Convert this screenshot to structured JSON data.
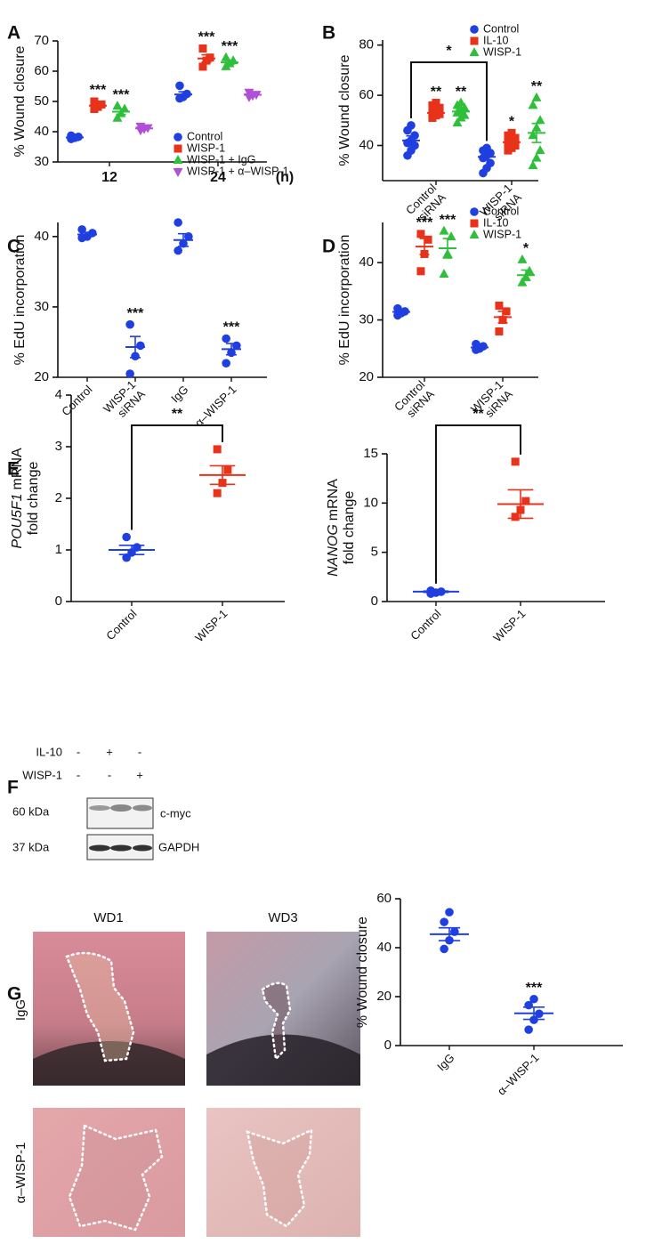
{
  "chart_data": [
    {
      "panel": "A",
      "type": "dotplot",
      "ylabel": [
        "% Wound closure"
      ],
      "xlabel": "(h)",
      "categories": [
        [
          "12"
        ],
        [
          "24"
        ]
      ],
      "ylim": [
        30,
        70
      ],
      "yticks": [
        30,
        40,
        50,
        60,
        70
      ],
      "legend": "lower right",
      "series": [
        {
          "name": "Control",
          "color": "#1f3fe0",
          "marker": "circle",
          "points": [
            [
              37.6,
              38.0,
              38.3,
              38.7
            ],
            [
              51.0,
              51.5,
              52.5,
              55.2
            ]
          ],
          "mean": [
            38.1,
            52.3
          ],
          "sem": [
            0.3,
            0.9
          ],
          "stars": [
            null,
            null
          ]
        },
        {
          "name": "WISP-1",
          "color": "#e8321a",
          "marker": "square",
          "points": [
            [
              47.5,
              48.2,
              49.0,
              50.0
            ],
            [
              61.5,
              63.5,
              64.5,
              67.5
            ]
          ],
          "mean": [
            48.6,
            64.2
          ],
          "sem": [
            0.6,
            1.2
          ],
          "stars": [
            "***",
            "***"
          ]
        },
        {
          "name": "WISP-1 + IgG",
          "color": "#2fbf3a",
          "marker": "triangle-up",
          "points": [
            [
              44.5,
              46.0,
              47.5,
              48.5
            ],
            [
              61.5,
              62.5,
              63.5,
              64.5
            ]
          ],
          "mean": [
            46.6,
            62.9
          ],
          "sem": [
            0.9,
            0.6
          ],
          "stars": [
            "***",
            "***"
          ]
        },
        {
          "name": "WISP-1 + α–WISP-1",
          "color": "#b04fd8",
          "marker": "triangle-down",
          "points": [
            [
              40.5,
              41.0,
              41.3,
              41.8
            ],
            [
              51.5,
              52.0,
              52.3,
              53.0
            ]
          ],
          "mean": [
            41.1,
            52.2
          ],
          "sem": [
            0.3,
            0.4
          ],
          "stars": [
            null,
            null
          ]
        }
      ]
    },
    {
      "panel": "B",
      "type": "dotplot",
      "ylabel": [
        "% Wound closure"
      ],
      "categories": [
        [
          "Control",
          "siRNA"
        ],
        [
          "WISP-1",
          "siRNA"
        ]
      ],
      "ylim": [
        26,
        82
      ],
      "yticks": [
        40,
        60,
        80
      ],
      "legend": "upper right",
      "bracket": "*",
      "series": [
        {
          "name": "Control",
          "color": "#1f3fe0",
          "marker": "circle",
          "points": [
            [
              36,
              38,
              40,
              41,
              42,
              44,
              46,
              48
            ],
            [
              29,
              31,
              33,
              35,
              36,
              37,
              38,
              39
            ]
          ],
          "mean": [
            42,
            35.5
          ],
          "sem": [
            1.8,
            1.3
          ],
          "stars": [
            null,
            null
          ]
        },
        {
          "name": "IL-10",
          "color": "#e8321a",
          "marker": "square",
          "points": [
            [
              51,
              52,
              52.5,
              53,
              54,
              55,
              56,
              57
            ],
            [
              38,
              39,
              40,
              41,
              42,
              43,
              44,
              45
            ]
          ],
          "mean": [
            53,
            41.3
          ],
          "sem": [
            0.7,
            0.9
          ],
          "stars": [
            "**",
            "*"
          ]
        },
        {
          "name": "WISP-1",
          "color": "#2fbf3a",
          "marker": "triangle-up",
          "points": [
            [
              49,
              51,
              52,
              53,
              54,
              55,
              56,
              57
            ],
            [
              32,
              35,
              38,
              44,
              47,
              50,
              56,
              59
            ]
          ],
          "mean": [
            53.5,
            45
          ],
          "sem": [
            1,
            3.8
          ],
          "stars": [
            "**",
            "**"
          ]
        }
      ]
    },
    {
      "panel": "C",
      "type": "dotplot",
      "ylabel": [
        "% EdU incorporation"
      ],
      "categories": [
        [
          "Control"
        ],
        [
          "WISP-1",
          "siRNA"
        ],
        [
          "IgG"
        ],
        [
          "α–WISP-1"
        ]
      ],
      "ylim": [
        20,
        42
      ],
      "yticks": [
        20,
        30,
        40
      ],
      "series": [
        {
          "color": "#1f3fe0",
          "marker": "circle",
          "points": [
            [
              39.8,
              40.0,
              40.5,
              41.0
            ],
            [
              20.5,
              23.0,
              24.5,
              27.5
            ],
            [
              38.0,
              39.0,
              40.0,
              42.0
            ],
            [
              22.0,
              23.5,
              24.5,
              25.5
            ]
          ],
          "mean": [
            40.3,
            24.3,
            39.5,
            24.0
          ],
          "sem": [
            0.3,
            1.5,
            0.9,
            0.8
          ],
          "stars": [
            null,
            "***",
            null,
            "***"
          ]
        }
      ]
    },
    {
      "panel": "D",
      "type": "dotplot",
      "ylabel": [
        "% EdU incorporation"
      ],
      "categories": [
        [
          "Control",
          "siRNA"
        ],
        [
          "WISP-1",
          "siRNA"
        ]
      ],
      "ylim": [
        20,
        47
      ],
      "yticks": [
        20,
        30,
        40
      ],
      "legend": "upper right",
      "series": [
        {
          "name": "Control",
          "color": "#1f3fe0",
          "marker": "circle",
          "points": [
            [
              30.8,
              31.2,
              31.5,
              32.0
            ],
            [
              24.8,
              25.0,
              25.4,
              25.8
            ]
          ],
          "mean": [
            31.4,
            25.2
          ],
          "sem": [
            0.3,
            0.2
          ],
          "stars": [
            null,
            null
          ]
        },
        {
          "name": "IL-10",
          "color": "#e8321a",
          "marker": "square",
          "points": [
            [
              38.5,
              41.5,
              44.0,
              45.0
            ],
            [
              28.0,
              30.0,
              31.5,
              32.5
            ]
          ],
          "mean": [
            42.8,
            30.5
          ],
          "sem": [
            1.4,
            1.0
          ],
          "stars": [
            "***",
            null
          ]
        },
        {
          "name": "WISP-1",
          "color": "#2fbf3a",
          "marker": "triangle-up",
          "points": [
            [
              38.0,
              41.5,
              44.5,
              45.5
            ],
            [
              36.5,
              37.5,
              38.5,
              40.5
            ]
          ],
          "mean": [
            42.5,
            37.8
          ],
          "sem": [
            1.7,
            0.9
          ],
          "stars": [
            "***",
            "*"
          ]
        }
      ]
    },
    {
      "panel": "E",
      "type": "dotplot",
      "ylabel_gene": "POU5F1",
      "ylabel": [
        "mRNA",
        "fold change"
      ],
      "categories": [
        [
          "Control"
        ],
        [
          "WISP-1"
        ]
      ],
      "ylim": [
        0,
        4
      ],
      "yticks": [
        0,
        1,
        2,
        3,
        4
      ],
      "bracket": "**",
      "series": [
        {
          "color": "#1f3fe0",
          "marker": "circle",
          "points": [
            [
              0.85,
              0.95,
              1.05,
              1.25
            ],
            null
          ],
          "mean": [
            1.0,
            null
          ],
          "sem": [
            0.09,
            null
          ]
        },
        {
          "color": "#e8321a",
          "marker": "square",
          "points": [
            null,
            [
              2.1,
              2.3,
              2.55,
              2.95
            ]
          ],
          "mean": [
            null,
            2.45
          ],
          "sem": [
            null,
            0.18
          ]
        }
      ]
    },
    {
      "type": "dotplot",
      "ylabel_gene": "NANOG",
      "ylabel": [
        "mRNA",
        "fold change"
      ],
      "categories": [
        [
          "Control"
        ],
        [
          "WISP-1"
        ]
      ],
      "ylim": [
        0,
        15
      ],
      "yticks": [
        0,
        5,
        10,
        15
      ],
      "bracket": "**",
      "series": [
        {
          "color": "#1f3fe0",
          "marker": "circle",
          "points": [
            [
              0.8,
              0.9,
              1.0,
              1.1
            ],
            null
          ],
          "mean": [
            1.0,
            null
          ],
          "sem": [
            0.07,
            null
          ]
        },
        {
          "color": "#e8321a",
          "marker": "square",
          "points": [
            null,
            [
              8.6,
              9.3,
              10.2,
              14.2
            ]
          ],
          "mean": [
            null,
            9.9
          ],
          "sem": [
            null,
            1.45
          ]
        }
      ]
    },
    {
      "type": "dotplot",
      "ylabel": [
        "% Wound closure"
      ],
      "categories": [
        [
          "IgG"
        ],
        [
          "α–WISP-1"
        ]
      ],
      "ylim": [
        0,
        60
      ],
      "yticks": [
        0,
        20,
        40,
        60
      ],
      "series": [
        {
          "color": "#1f3fe0",
          "marker": "circle",
          "points": [
            [
              39.5,
              43,
              46.5,
              50.5,
              54.5
            ],
            [
              6.5,
              10.5,
              13,
              16.5,
              19
            ]
          ],
          "mean": [
            45.5,
            13.2
          ],
          "sem": [
            2.6,
            2.5
          ],
          "stars": [
            null,
            "***"
          ]
        }
      ]
    }
  ],
  "blot": {
    "panel": "F",
    "rows": [
      {
        "label": "IL-10",
        "signs": [
          "-",
          "+",
          "-"
        ]
      },
      {
        "label": "WISP-1",
        "signs": [
          "-",
          "-",
          "+"
        ]
      }
    ],
    "bands": [
      {
        "size": "60 kDa",
        "protein": "c-myc"
      },
      {
        "size": "37 kDa",
        "protein": "GAPDH"
      }
    ]
  },
  "photos": {
    "panel": "G",
    "columns": [
      "WD1",
      "WD3"
    ],
    "rows": [
      "IgG",
      "α–WISP-1"
    ]
  }
}
